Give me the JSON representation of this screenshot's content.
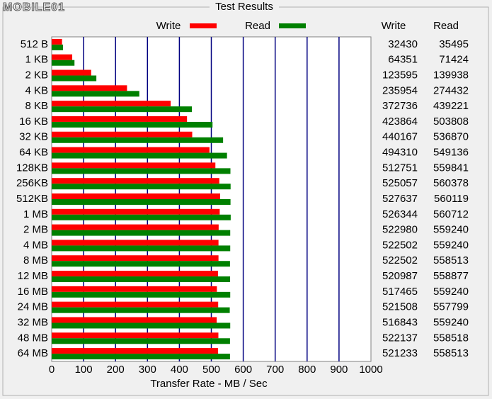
{
  "watermark": "MOBILE01",
  "chart_data": {
    "type": "barh",
    "title": "Test Results",
    "xlabel": "Transfer Rate - MB / Sec",
    "categories": [
      "512 B",
      "1 KB",
      "2 KB",
      "4 KB",
      "8 KB",
      "16 KB",
      "32 KB",
      "64 KB",
      "128KB",
      "256KB",
      "512KB",
      "1 MB",
      "2 MB",
      "4 MB",
      "8 MB",
      "12 MB",
      "16 MB",
      "24 MB",
      "32 MB",
      "48 MB",
      "64 MB"
    ],
    "series": [
      {
        "name": "Write",
        "color": "#ff0000",
        "values": [
          32.43,
          64.351,
          123.595,
          235.954,
          372.736,
          423.864,
          440.167,
          494.31,
          512.751,
          525.057,
          527.637,
          526.344,
          522.98,
          522.502,
          522.502,
          520.987,
          517.465,
          521.508,
          516.843,
          522.137,
          521.233
        ]
      },
      {
        "name": "Read",
        "color": "#008000",
        "values": [
          35.495,
          71.424,
          139.938,
          274.432,
          439.221,
          503.808,
          536.87,
          549.136,
          559.841,
          560.378,
          560.119,
          560.712,
          559.24,
          559.24,
          558.513,
          558.877,
          559.24,
          557.799,
          559.24,
          558.518,
          558.513
        ]
      }
    ],
    "xlim": [
      0,
      1000
    ],
    "xticks": [
      0,
      100,
      200,
      300,
      400,
      500,
      600,
      700,
      800,
      900,
      1000
    ],
    "grid": true,
    "grid_color": "#000080"
  },
  "table": {
    "rows": [
      [
        32430,
        35495
      ],
      [
        64351,
        71424
      ],
      [
        123595,
        139938
      ],
      [
        235954,
        274432
      ],
      [
        372736,
        439221
      ],
      [
        423864,
        503808
      ],
      [
        440167,
        536870
      ],
      [
        494310,
        549136
      ],
      [
        512751,
        559841
      ],
      [
        525057,
        560378
      ],
      [
        527637,
        560119
      ],
      [
        526344,
        560712
      ],
      [
        522980,
        559240
      ],
      [
        522502,
        559240
      ],
      [
        522502,
        558513
      ],
      [
        520987,
        558877
      ],
      [
        517465,
        559240
      ],
      [
        521508,
        557799
      ],
      [
        516843,
        559240
      ],
      [
        522137,
        558518
      ],
      [
        521233,
        558513
      ]
    ]
  }
}
